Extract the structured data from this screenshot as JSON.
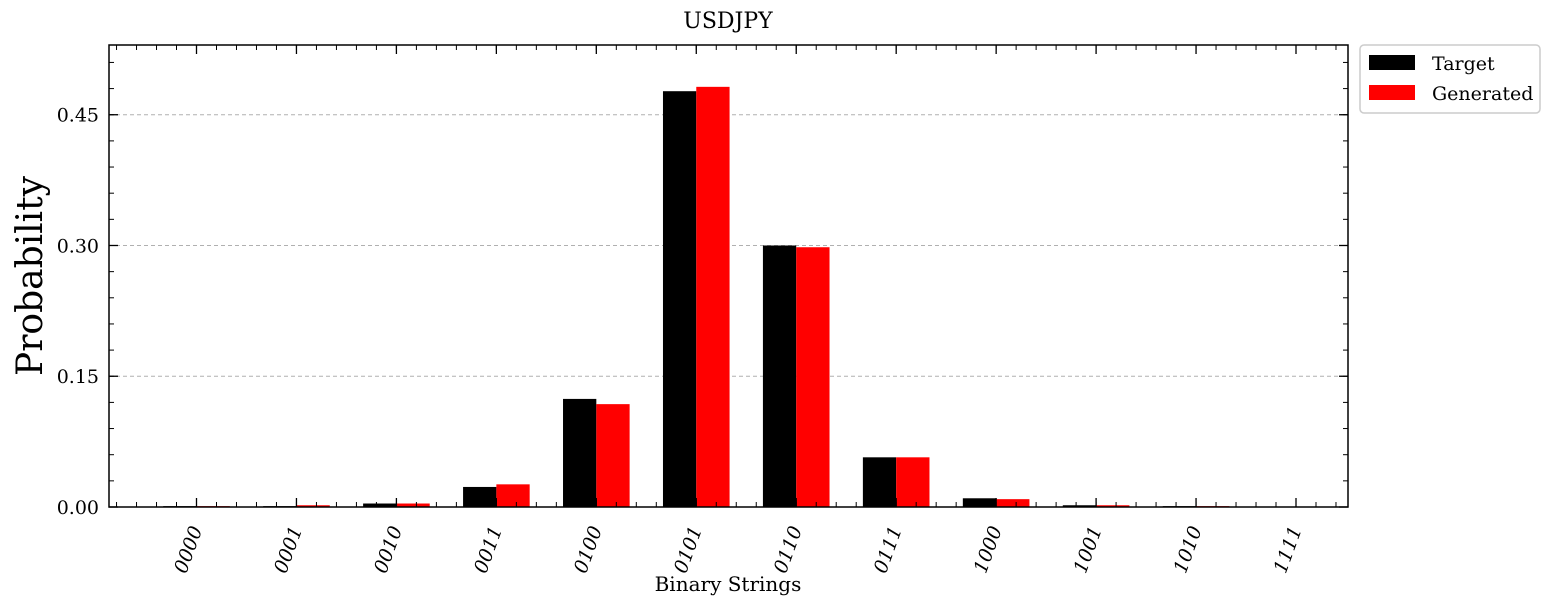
{
  "chart_data": {
    "type": "bar",
    "title": "USDJPY",
    "xlabel": "Binary Strings",
    "ylabel": "Probability",
    "ylim": [
      0,
      0.53
    ],
    "yticks": [
      "0.00",
      "0.15",
      "0.30",
      "0.45"
    ],
    "categories": [
      "0000",
      "0001",
      "0010",
      "0011",
      "0100",
      "0101",
      "0110",
      "0111",
      "1000",
      "1001",
      "1010",
      "1111"
    ],
    "series": [
      {
        "name": "Target",
        "color": "#000000",
        "values": [
          0.001,
          0.001,
          0.004,
          0.023,
          0.124,
          0.477,
          0.3,
          0.057,
          0.01,
          0.002,
          0.001,
          0.0
        ]
      },
      {
        "name": "Generated",
        "color": "#ff0000",
        "values": [
          0.001,
          0.002,
          0.004,
          0.026,
          0.118,
          0.482,
          0.298,
          0.057,
          0.009,
          0.002,
          0.001,
          0.0
        ]
      }
    ],
    "grid": "y-dashed",
    "legend": "outside-top-right"
  }
}
